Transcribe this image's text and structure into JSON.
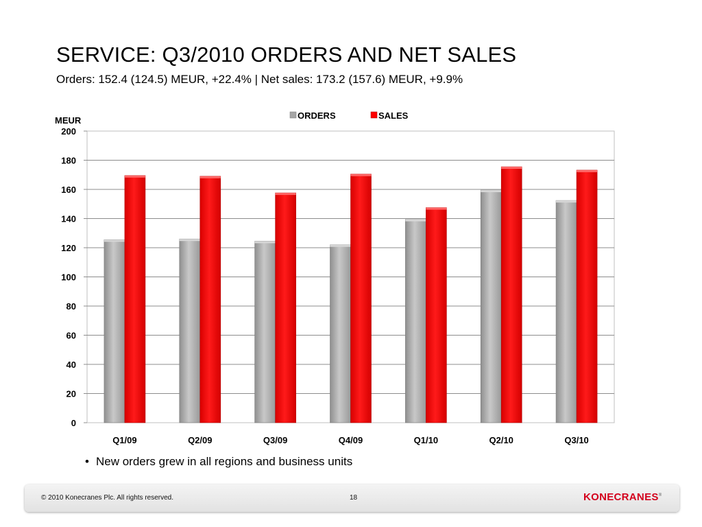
{
  "slide": {
    "title": "SERVICE: Q3/2010 ORDERS AND NET SALES",
    "subtitle": "Orders: 152.4 (124.5) MEUR, +22.4% | Net sales: 173.2 (157.6) MEUR, +9.9%",
    "bullet": "New orders grew in all regions and business units"
  },
  "footer": {
    "copyright": "© 2010 Konecranes Plc. All rights reserved.",
    "page_number": "18",
    "logo_text": "KONECRANES",
    "logo_mark": "®"
  },
  "chart_data": {
    "type": "bar",
    "ylabel": "MEUR",
    "ylim": [
      0,
      200
    ],
    "yticks": [
      0,
      20,
      40,
      60,
      80,
      100,
      120,
      140,
      160,
      180,
      200
    ],
    "grid": true,
    "legend_position": "top-center",
    "categories": [
      "Q1/09",
      "Q2/09",
      "Q3/09",
      "Q4/09",
      "Q1/10",
      "Q2/10",
      "Q3/10"
    ],
    "series": [
      {
        "name": "ORDERS",
        "color": "#a6a6a6",
        "values": [
          125.5,
          126,
          124.5,
          122,
          139.5,
          159.5,
          152.4
        ]
      },
      {
        "name": "SALES",
        "color": "#ff0000",
        "values": [
          169.5,
          169,
          157.6,
          170.5,
          147.5,
          175.5,
          173.2
        ]
      }
    ]
  }
}
